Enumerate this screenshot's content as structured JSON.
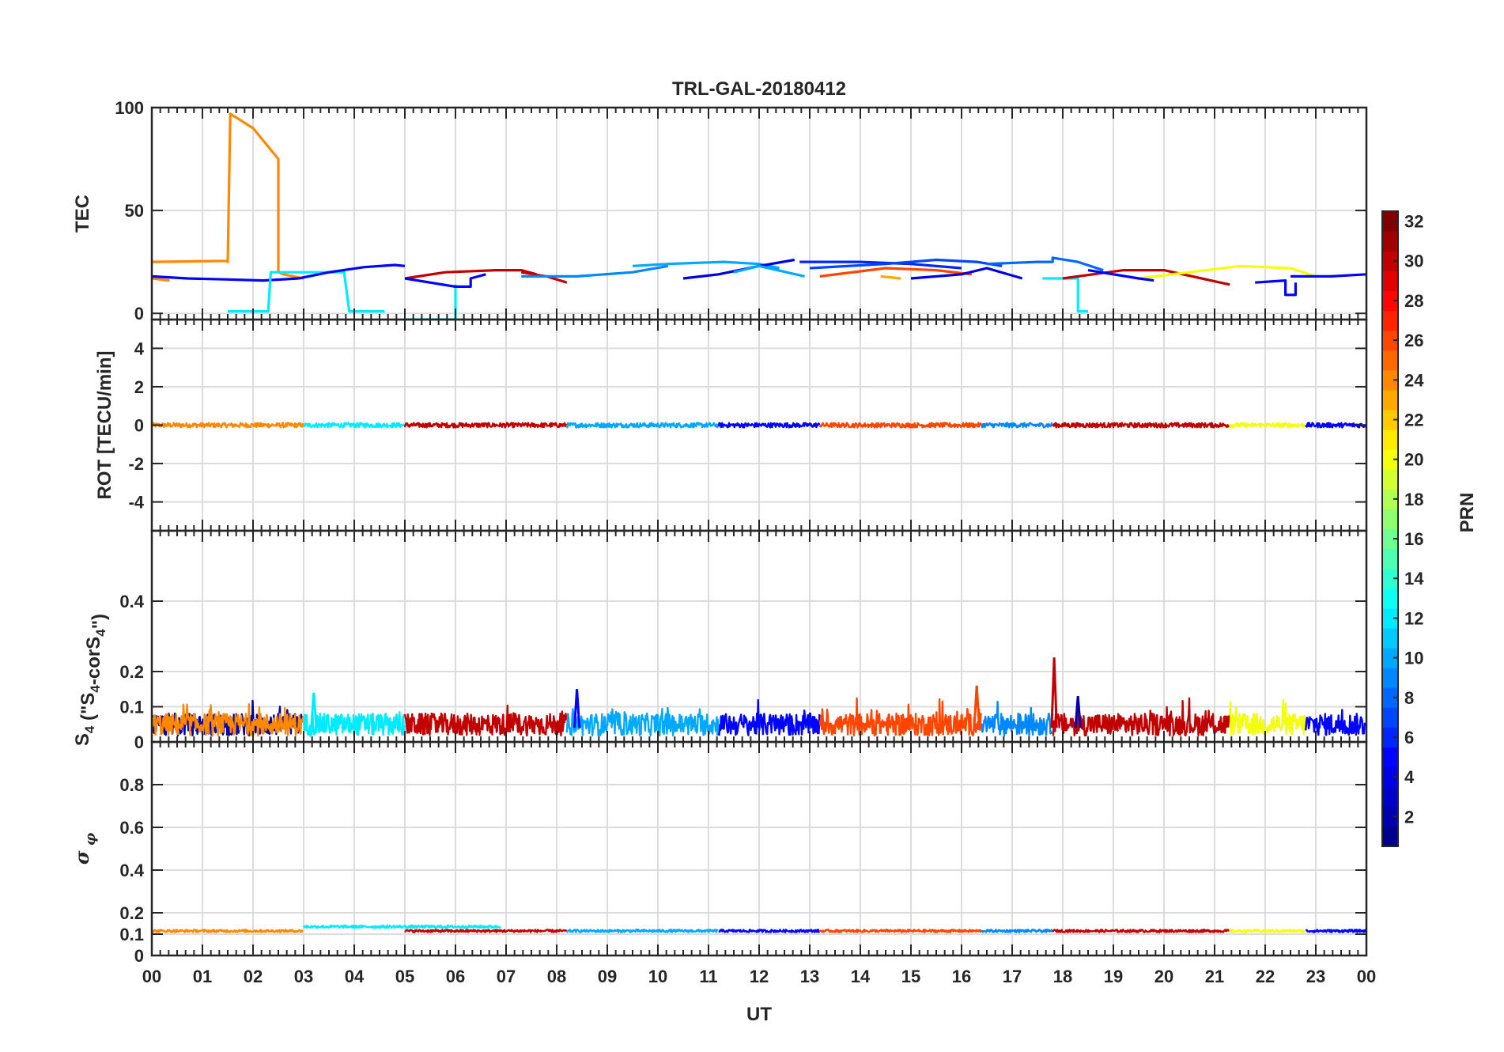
{
  "title": "TRL-GAL-20180412",
  "colors": {
    "axis": "#262626",
    "grid": "#dcdcdc",
    "colormap": [
      "#00008F",
      "#0000FF",
      "#0080FF",
      "#00FFFF",
      "#80FF80",
      "#FFFF00",
      "#FF8000",
      "#FF0000",
      "#800000"
    ]
  },
  "x_axis": {
    "label": "UT",
    "range": [
      0,
      24
    ],
    "tick_labels": [
      "00",
      "01",
      "02",
      "03",
      "04",
      "05",
      "06",
      "07",
      "08",
      "09",
      "10",
      "11",
      "12",
      "13",
      "14",
      "15",
      "16",
      "17",
      "18",
      "19",
      "20",
      "21",
      "22",
      "23",
      "00"
    ]
  },
  "colorbar": {
    "label": "PRN",
    "range": [
      1,
      32
    ],
    "tick_labels": [
      "2",
      "4",
      "6",
      "8",
      "10",
      "12",
      "14",
      "16",
      "18",
      "20",
      "22",
      "24",
      "26",
      "28",
      "30",
      "32"
    ]
  },
  "chart_data": [
    {
      "type": "line",
      "id": "tec",
      "ylabel": "TEC",
      "ylim": [
        -3,
        100
      ],
      "ytick_labels": [
        "0",
        "50",
        "100"
      ],
      "series": [
        {
          "prn": 24,
          "x": [
            0,
            1.5,
            1.5,
            1.55,
            2.0,
            2.5,
            2.5,
            2.6,
            3.0
          ],
          "y": [
            25,
            25.5,
            25,
            97,
            90,
            75,
            20,
            19,
            17
          ]
        },
        {
          "prn": 24,
          "x": [
            0,
            0.35
          ],
          "y": [
            17,
            16
          ]
        },
        {
          "prn": 5,
          "x": [
            0,
            0.7,
            1.5,
            2.2,
            2.9
          ],
          "y": [
            18,
            17,
            16.5,
            16,
            17
          ]
        },
        {
          "prn": 12,
          "x": [
            1.5,
            2.3,
            2.35,
            3.0,
            3.8,
            3.9,
            4.6
          ],
          "y": [
            1,
            1,
            20,
            20,
            20,
            1,
            1
          ]
        },
        {
          "prn": 5,
          "x": [
            2.9,
            3.5,
            4.2,
            4.8,
            5.0
          ],
          "y": [
            17,
            20,
            22.5,
            23.5,
            23
          ]
        },
        {
          "prn": 12,
          "x": [
            5,
            6.0,
            6.0
          ],
          "y": [
            -3,
            -3,
            14
          ]
        },
        {
          "prn": 30,
          "x": [
            5,
            5.8,
            6.8,
            7.3,
            7.6
          ],
          "y": [
            17,
            20,
            21,
            21,
            19
          ]
        },
        {
          "prn": 5,
          "x": [
            5.0,
            6.0,
            6.3,
            6.3,
            6.6
          ],
          "y": [
            17,
            13,
            13,
            17,
            19
          ]
        },
        {
          "prn": 30,
          "x": [
            7.3,
            7.8,
            8.2
          ],
          "y": [
            20,
            18,
            15
          ]
        },
        {
          "prn": 9,
          "x": [
            7.3,
            8.4,
            9.5,
            10.2
          ],
          "y": [
            18,
            18,
            20,
            23
          ]
        },
        {
          "prn": 10,
          "x": [
            9.5,
            10.2,
            11.3,
            12.0,
            12.4
          ],
          "y": [
            23,
            24,
            25,
            24,
            22
          ]
        },
        {
          "prn": 4,
          "x": [
            10.5,
            11.2,
            12.0,
            12.7
          ],
          "y": [
            17,
            19,
            23,
            26
          ]
        },
        {
          "prn": 10,
          "x": [
            11.5,
            12.0,
            12.9
          ],
          "y": [
            20,
            23,
            18
          ]
        },
        {
          "prn": 6,
          "x": [
            12.8,
            14.0,
            15.0,
            16.0
          ],
          "y": [
            25,
            25,
            24,
            22
          ]
        },
        {
          "prn": 7,
          "x": [
            13.0,
            14.5,
            15.5,
            16.3,
            16.8
          ],
          "y": [
            22,
            24,
            26,
            25,
            23
          ]
        },
        {
          "prn": 26,
          "x": [
            13.2,
            14.5,
            15.5,
            16.2
          ],
          "y": [
            18,
            22,
            21,
            19
          ]
        },
        {
          "prn": 23,
          "x": [
            14.4,
            14.8
          ],
          "y": [
            18,
            17
          ]
        },
        {
          "prn": 8,
          "x": [
            16.5,
            17.5,
            17.8,
            17.8,
            18.3,
            18.8
          ],
          "y": [
            24,
            25,
            25,
            27,
            25,
            21
          ]
        },
        {
          "prn": 4,
          "x": [
            15.0,
            16.0,
            16.5,
            17.2
          ],
          "y": [
            17,
            19,
            22,
            17
          ]
        },
        {
          "prn": 12,
          "x": [
            17.6,
            18.3,
            18.3,
            18.5
          ],
          "y": [
            17,
            17,
            1,
            1
          ]
        },
        {
          "prn": 30,
          "x": [
            18.0,
            18.6,
            19.2,
            20.0,
            21.3
          ],
          "y": [
            17,
            19,
            21,
            21,
            14
          ]
        },
        {
          "prn": 20,
          "x": [
            19.5,
            21.5,
            22.5,
            23.0
          ],
          "y": [
            17,
            23,
            22,
            18
          ]
        },
        {
          "prn": 5,
          "x": [
            18.5,
            19.5,
            19.8
          ],
          "y": [
            21,
            17,
            16
          ]
        },
        {
          "prn": 5,
          "x": [
            21.8,
            22.4,
            22.4,
            22.6,
            22.6
          ],
          "y": [
            15,
            16,
            9,
            9,
            15
          ]
        },
        {
          "prn": 5,
          "x": [
            22.5,
            23.3,
            24.0
          ],
          "y": [
            18,
            18,
            19
          ]
        }
      ]
    },
    {
      "type": "line",
      "id": "rot",
      "ylabel": "ROT [TECU/min]",
      "ylim": [
        -5.5,
        5.5
      ],
      "ytick_labels": [
        "-4",
        "-2",
        "0",
        "2",
        "4"
      ],
      "level": 0,
      "noise": 0.12,
      "series": [
        {
          "prn": 24,
          "x0": 0,
          "x1": 3
        },
        {
          "prn": 12,
          "x0": 3,
          "x1": 5
        },
        {
          "prn": 30,
          "x0": 5,
          "x1": 8.2
        },
        {
          "prn": 10,
          "x0": 8.2,
          "x1": 11.2
        },
        {
          "prn": 5,
          "x0": 11.2,
          "x1": 13.2
        },
        {
          "prn": 26,
          "x0": 13.2,
          "x1": 16.4
        },
        {
          "prn": 9,
          "x0": 16.4,
          "x1": 17.8
        },
        {
          "prn": 30,
          "x0": 17.8,
          "x1": 21.3
        },
        {
          "prn": 20,
          "x0": 21.3,
          "x1": 22.8
        },
        {
          "prn": 5,
          "x0": 22.8,
          "x1": 24
        }
      ]
    },
    {
      "type": "line",
      "id": "s4",
      "ylabel": "S4 (\"S4-corS4\")",
      "ylim": [
        0,
        0.6
      ],
      "ytick_labels": [
        "0",
        "0.1",
        "0.2",
        "0.4"
      ],
      "level": 0.04,
      "noise": 0.045,
      "series": [
        {
          "prn": 2,
          "x0": 0,
          "x1": 3
        },
        {
          "prn": 24,
          "x0": 0,
          "x1": 3
        },
        {
          "prn": 12,
          "x0": 3,
          "x1": 5
        },
        {
          "prn": 30,
          "x0": 5,
          "x1": 8.2
        },
        {
          "prn": 10,
          "x0": 8.2,
          "x1": 11.2
        },
        {
          "prn": 5,
          "x0": 11.2,
          "x1": 13.2
        },
        {
          "prn": 26,
          "x0": 13.2,
          "x1": 16.4
        },
        {
          "prn": 9,
          "x0": 16.4,
          "x1": 17.8
        },
        {
          "prn": 30,
          "x0": 17.8,
          "x1": 21.3
        },
        {
          "prn": 20,
          "x0": 21.3,
          "x1": 22.8
        },
        {
          "prn": 5,
          "x0": 22.8,
          "x1": 24
        }
      ],
      "spikes": [
        {
          "x": 3.2,
          "y": 0.14,
          "prn": 12
        },
        {
          "x": 8.4,
          "y": 0.15,
          "prn": 5
        },
        {
          "x": 16.3,
          "y": 0.16,
          "prn": 26
        },
        {
          "x": 17.83,
          "y": 0.24,
          "prn": 30
        },
        {
          "x": 18.3,
          "y": 0.13,
          "prn": 2
        }
      ]
    },
    {
      "type": "line",
      "id": "sigma_phi",
      "ylabel": "σ φ",
      "ylim": [
        0,
        1.0
      ],
      "ytick_labels": [
        "0",
        "0.1",
        "0.2",
        "0.4",
        "0.6",
        "0.8"
      ],
      "level": 0.115,
      "noise": 0.006,
      "series": [
        {
          "prn": 24,
          "x0": 0,
          "x1": 3
        },
        {
          "prn": 12,
          "x0": 3,
          "x1": 6.9,
          "level": 0.135
        },
        {
          "prn": 30,
          "x0": 5,
          "x1": 8.2
        },
        {
          "prn": 10,
          "x0": 8.2,
          "x1": 11.2
        },
        {
          "prn": 5,
          "x0": 11.2,
          "x1": 13.2
        },
        {
          "prn": 26,
          "x0": 13.2,
          "x1": 16.4
        },
        {
          "prn": 9,
          "x0": 16.4,
          "x1": 17.8
        },
        {
          "prn": 30,
          "x0": 17.8,
          "x1": 21.3
        },
        {
          "prn": 20,
          "x0": 21.3,
          "x1": 22.8
        },
        {
          "prn": 5,
          "x0": 22.8,
          "x1": 24
        }
      ]
    }
  ]
}
